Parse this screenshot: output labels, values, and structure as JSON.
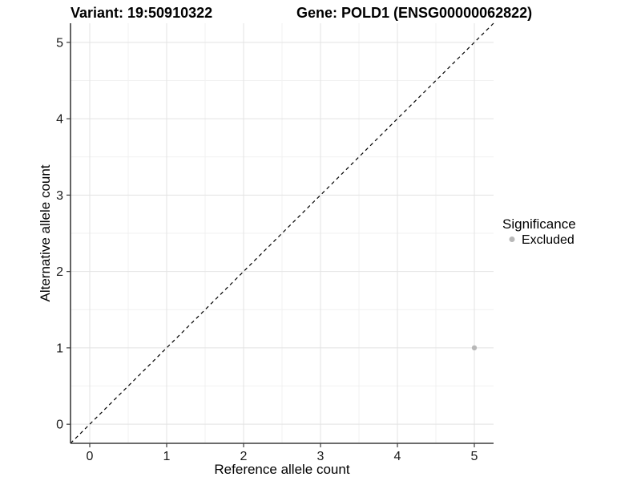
{
  "chart_data": {
    "type": "scatter",
    "title_left": "Variant: 19:50910322",
    "title_right": "Gene: POLD1 (ENSG00000062822)",
    "xlabel": "Reference allele count",
    "ylabel": "Alternative allele count",
    "xlim": [
      -0.25,
      5.25
    ],
    "ylim": [
      -0.25,
      5.25
    ],
    "x_ticks": [
      0,
      1,
      2,
      3,
      4,
      5
    ],
    "y_ticks": [
      0,
      1,
      2,
      3,
      4,
      5
    ],
    "grid": "major+minor",
    "background": "#ffffff",
    "reference_line": {
      "type": "identity",
      "style": "dashed",
      "color": "#000000"
    },
    "series": [
      {
        "name": "Excluded",
        "color": "#b8b8b8",
        "points": [
          [
            5,
            1
          ]
        ]
      }
    ],
    "legend": {
      "title": "Significance",
      "position": "right",
      "items": [
        {
          "label": "Excluded",
          "color": "#b8b8b8"
        }
      ]
    }
  }
}
